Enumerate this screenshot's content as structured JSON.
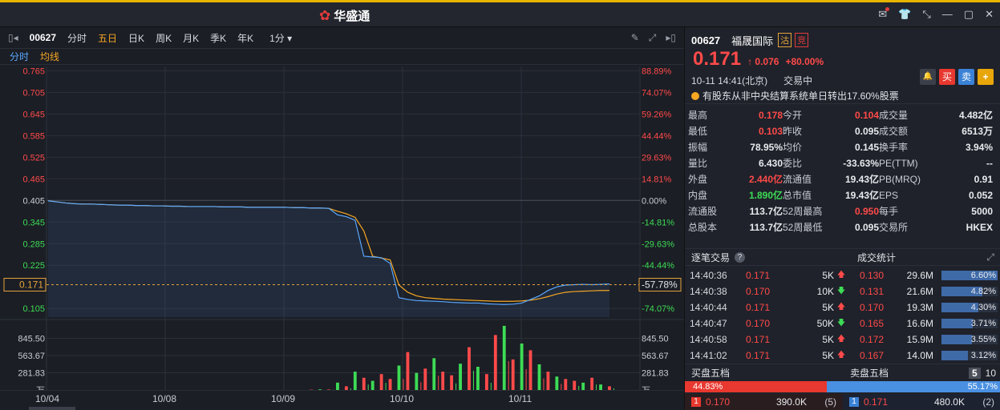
{
  "app": {
    "title": "华盛通"
  },
  "window_controls": [
    "✉",
    "👕",
    "⤡",
    "—",
    "▢",
    "✕"
  ],
  "toolbar": {
    "code": "00627",
    "tabs": [
      "分时",
      "五日",
      "日K",
      "周K",
      "月K",
      "季K",
      "年K"
    ],
    "active_tab": "五日",
    "interval": "1分 ▾"
  },
  "subtabs": {
    "t1": "分时",
    "t2": "均线"
  },
  "chart_data": {
    "type": "line",
    "y_price_ticks": [
      "0.765",
      "0.705",
      "0.645",
      "0.585",
      "0.525",
      "0.465",
      "0.405",
      "0.345",
      "0.285",
      "0.225",
      "0.105"
    ],
    "y_pct_ticks": [
      "88.89%",
      "74.07%",
      "59.26%",
      "44.44%",
      "29.63%",
      "14.81%",
      "0.00%",
      "-14.81%",
      "-29.63%",
      "-44.44%",
      "-74.07%"
    ],
    "current_price_label": "0.171",
    "current_pct_label": "-57.78%",
    "ylim": [
      0.081,
      0.777
    ],
    "x_labels": [
      "10/04",
      "10/08",
      "10/09",
      "10/10",
      "10/11"
    ],
    "series": [
      {
        "values": [
          0.404,
          0.401,
          0.398,
          0.396,
          0.395,
          0.395,
          0.394,
          0.393,
          0.392,
          0.392,
          0.391,
          0.391,
          0.39,
          0.39,
          0.389,
          0.389,
          0.388,
          0.388,
          0.388,
          0.388,
          0.387,
          0.387,
          0.387,
          0.386,
          0.386,
          0.386,
          0.386,
          0.386,
          0.385,
          0.385,
          0.384,
          0.384,
          0.383,
          0.365,
          0.36,
          0.35,
          0.25,
          0.248,
          0.246,
          0.23,
          0.135,
          0.13,
          0.127,
          0.126,
          0.125,
          0.124,
          0.122,
          0.121,
          0.12,
          0.12,
          0.118,
          0.117,
          0.116,
          0.117,
          0.12,
          0.13,
          0.14,
          0.155,
          0.165,
          0.17,
          0.171,
          0.172,
          0.171,
          0.172,
          0.173
        ]
      },
      {
        "values": [
          0.404,
          0.401,
          0.398,
          0.396,
          0.395,
          0.395,
          0.394,
          0.393,
          0.392,
          0.392,
          0.391,
          0.391,
          0.39,
          0.39,
          0.389,
          0.389,
          0.388,
          0.388,
          0.388,
          0.388,
          0.387,
          0.387,
          0.387,
          0.386,
          0.386,
          0.386,
          0.386,
          0.386,
          0.385,
          0.385,
          0.384,
          0.384,
          0.383,
          0.375,
          0.368,
          0.358,
          0.32,
          0.25,
          0.245,
          0.24,
          0.17,
          0.15,
          0.14,
          0.135,
          0.133,
          0.131,
          0.13,
          0.129,
          0.128,
          0.127,
          0.126,
          0.125,
          0.125,
          0.125,
          0.126,
          0.128,
          0.132,
          0.138,
          0.145,
          0.15,
          0.152,
          0.153,
          0.154,
          0.155,
          0.155
        ]
      }
    ],
    "volume": {
      "ticks": [
        "845.50",
        "563.67",
        "281.83",
        "万"
      ],
      "ylim": [
        0,
        1127
      ],
      "bars": [
        0,
        0,
        0,
        0,
        0,
        0,
        0,
        0,
        0,
        0,
        0,
        0,
        0,
        0,
        0,
        0,
        0,
        0,
        0,
        0,
        0,
        0,
        0,
        0,
        0,
        0,
        0,
        0,
        0,
        0,
        5,
        10,
        8,
        120,
        60,
        300,
        200,
        150,
        260,
        180,
        400,
        620,
        280,
        350,
        520,
        300,
        240,
        430,
        700,
        380,
        260,
        900,
        1050,
        500,
        760,
        650,
        420,
        300,
        220,
        180,
        150,
        120,
        200,
        90,
        60
      ],
      "up": [
        1,
        1,
        1,
        1,
        1,
        1,
        1,
        1,
        1,
        1,
        1,
        1,
        1,
        1,
        1,
        1,
        1,
        1,
        1,
        1,
        1,
        1,
        1,
        1,
        1,
        1,
        1,
        1,
        1,
        1,
        1,
        0,
        1,
        0,
        1,
        0,
        1,
        0,
        1,
        1,
        0,
        1,
        0,
        1,
        0,
        1,
        1,
        0,
        1,
        0,
        1,
        1,
        0,
        1,
        0,
        1,
        0,
        1,
        0,
        1,
        1,
        0,
        1,
        0,
        1
      ]
    }
  },
  "quote": {
    "code": "00627",
    "name": "福晟国际",
    "tag1": "沽",
    "tag2": "竞",
    "price": "0.171",
    "change": "↑ 0.076",
    "change_pct": "+80.00%",
    "datetime": "10-11  14:41(北京)",
    "status": "交易中",
    "buttons": [
      "🔔",
      "买",
      "卖",
      "+"
    ],
    "notice": "有股东从非中央结算系统单日转出17.60%股票"
  },
  "stats": [
    [
      "最高",
      "0.178",
      "red",
      "今开",
      "0.104",
      "red",
      "成交量",
      "4.482亿",
      ""
    ],
    [
      "最低",
      "0.103",
      "red",
      "昨收",
      "0.095",
      "",
      "成交额",
      "6513万",
      ""
    ],
    [
      "振幅",
      "78.95%",
      "",
      "均价",
      "0.145",
      "",
      "换手率",
      "3.94%",
      ""
    ],
    [
      "量比",
      "6.430",
      "",
      "委比",
      "-33.63%",
      "",
      "PE(TTM)",
      "--",
      ""
    ],
    [
      "外盘",
      "2.440亿",
      "red",
      "流通值",
      "19.43亿",
      "",
      "PB(MRQ)",
      "0.91",
      ""
    ],
    [
      "内盘",
      "1.890亿",
      "green",
      "总市值",
      "19.43亿",
      "",
      "EPS",
      "0.052",
      ""
    ],
    [
      "流通股",
      "113.7亿",
      "",
      "52周最高",
      "0.950",
      "red",
      "每手",
      "5000",
      ""
    ],
    [
      "总股本",
      "113.7亿",
      "",
      "52周最低",
      "0.095",
      "",
      "交易所",
      "HKEX",
      ""
    ]
  ],
  "sections": {
    "trades_title": "逐笔交易",
    "dist_title": "成交统计"
  },
  "trades": [
    {
      "time": "14:40:36",
      "price": "0.171",
      "vol": "5K",
      "dir": "up"
    },
    {
      "time": "14:40:38",
      "price": "0.170",
      "vol": "10K",
      "dir": "down"
    },
    {
      "time": "14:40:44",
      "price": "0.171",
      "vol": "5K",
      "dir": "up"
    },
    {
      "time": "14:40:47",
      "price": "0.170",
      "vol": "50K",
      "dir": "down"
    },
    {
      "time": "14:40:58",
      "price": "0.171",
      "vol": "5K",
      "dir": "up"
    },
    {
      "time": "14:41:02",
      "price": "0.171",
      "vol": "5K",
      "dir": "up"
    }
  ],
  "distribution": [
    {
      "price": "0.130",
      "qty": "29.6M",
      "pct": "6.60%",
      "ratio": 1.0
    },
    {
      "price": "0.131",
      "qty": "21.6M",
      "pct": "4.82%",
      "ratio": 0.73
    },
    {
      "price": "0.170",
      "qty": "19.3M",
      "pct": "4.30%",
      "ratio": 0.65
    },
    {
      "price": "0.165",
      "qty": "16.6M",
      "pct": "3.71%",
      "ratio": 0.56
    },
    {
      "price": "0.172",
      "qty": "15.9M",
      "pct": "3.55%",
      "ratio": 0.54
    },
    {
      "price": "0.167",
      "qty": "14.0M",
      "pct": "3.12%",
      "ratio": 0.47
    }
  ],
  "orderbook": {
    "buy_title": "买盘五档",
    "sell_title": "卖盘五档",
    "depth_options": [
      "5",
      "10"
    ],
    "buy_pct": "44.83%",
    "sell_pct": "55.17%",
    "buy_ratio": 0.4483,
    "bid": {
      "level": "1",
      "price": "0.170",
      "qty": "390.0K",
      "count": "(5)"
    },
    "ask": {
      "level": "1",
      "price": "0.171",
      "qty": "480.0K",
      "count": "(2)"
    }
  },
  "colors": {
    "up": "#ff4a4a",
    "down": "#3ddc55",
    "price_line": "#5aa8ff",
    "avg_line": "#f5a623"
  }
}
